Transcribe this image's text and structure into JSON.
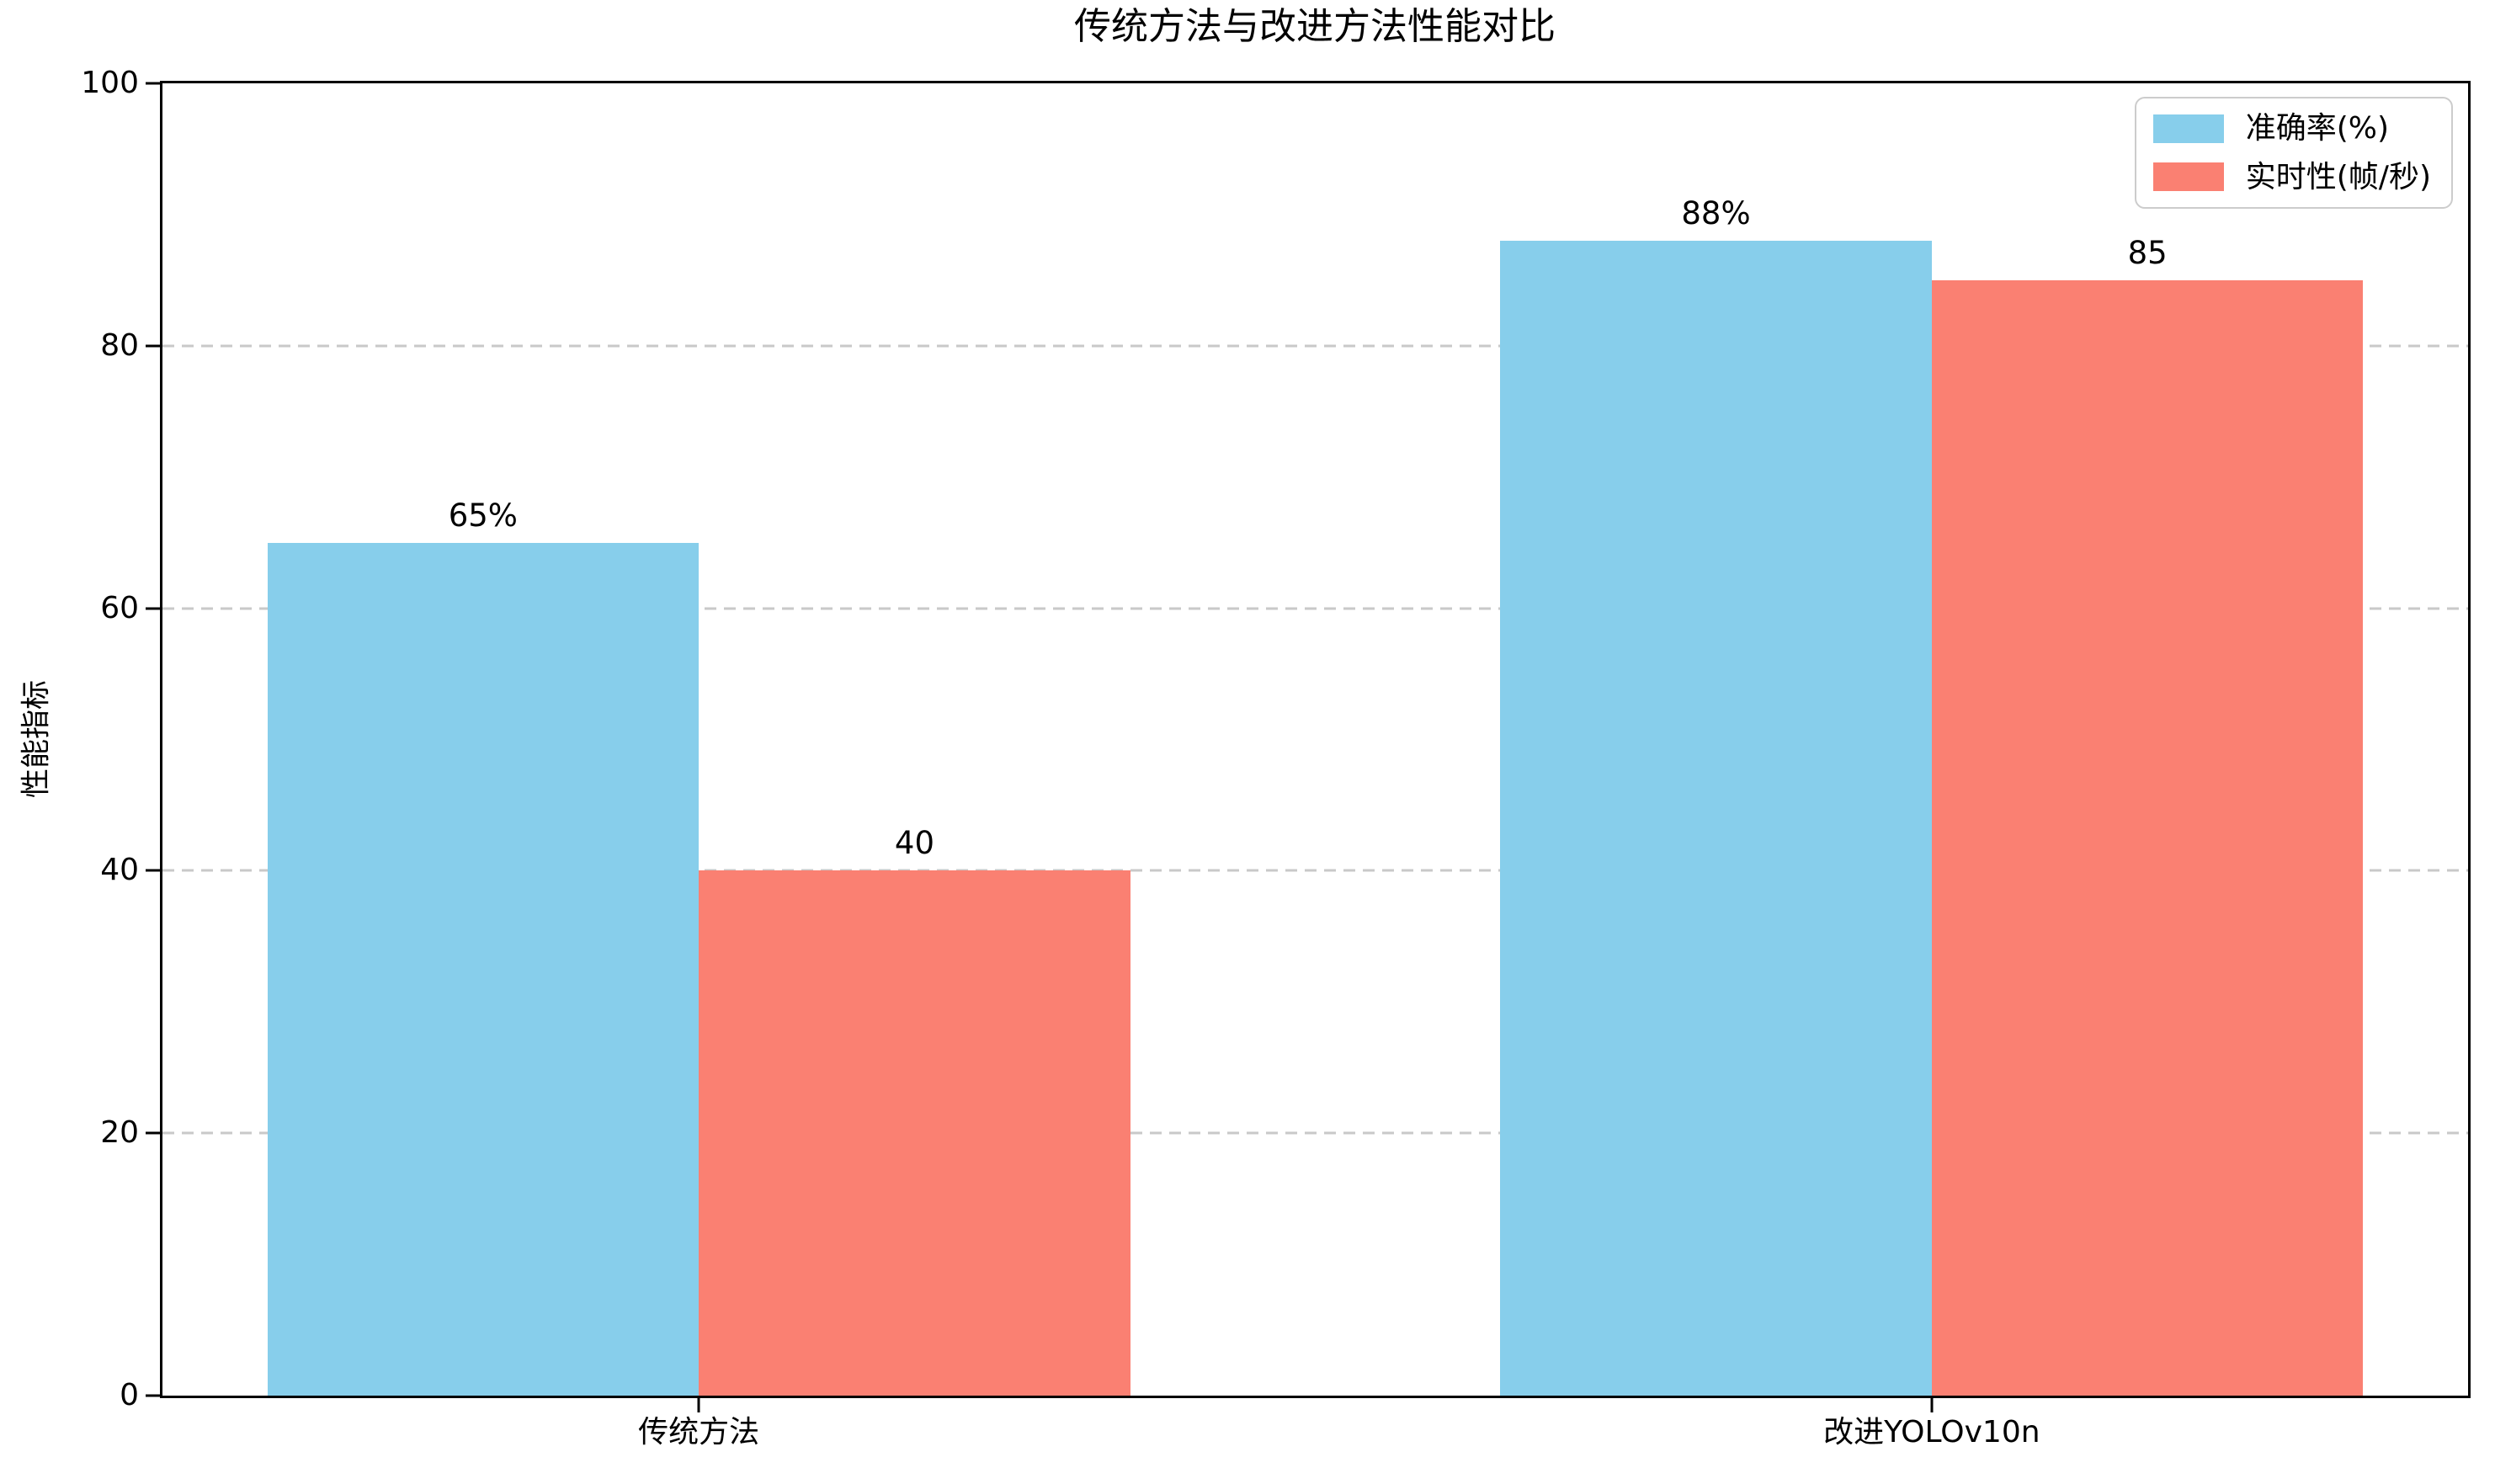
{
  "title": "传统方法与改进方法性能对比",
  "chart_data": {
    "type": "bar",
    "title": "传统方法与改进方法性能对比",
    "categories": [
      "传统方法",
      "改进YOLOv10n"
    ],
    "series": [
      {
        "name": "准确率(%)",
        "color": "#87CEEB",
        "values": [
          65,
          88
        ],
        "labels": [
          "65%",
          "88%"
        ]
      },
      {
        "name": "实时性(帧/秒)",
        "color": "#FA8072",
        "values": [
          40,
          85
        ],
        "labels": [
          "40",
          "85"
        ]
      }
    ],
    "xlabel": "",
    "ylabel": "性能指标",
    "ylim": [
      0,
      100
    ],
    "yticks": [
      0,
      20,
      40,
      60,
      80,
      100
    ],
    "bar_width_data_units": 0.35,
    "xlim_data_units": [
      -0.435,
      1.435
    ],
    "grid": "horizontal dashed",
    "grid_color": "#c9c9c9",
    "legend_position": "upper right",
    "background": "#ffffff",
    "axis_color": "#000000"
  }
}
